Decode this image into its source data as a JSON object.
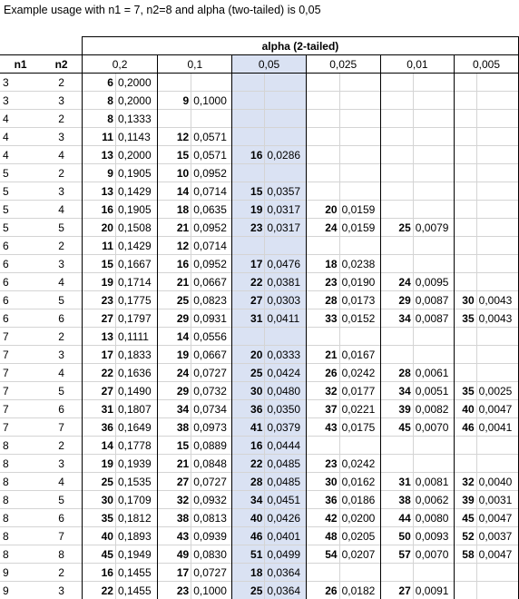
{
  "caption": "Example usage with n1 = 7, n2=8 and alpha (two-tailed) is 0,05",
  "table": {
    "super_header": "alpha (2-tailed)",
    "headers": [
      "n1",
      "n2"
    ],
    "alphas": [
      "0,2",
      "0,1",
      "0,05",
      "0,025",
      "0,01",
      "0,005"
    ],
    "highlight_alpha_index": 2,
    "highlight_row_index": 29,
    "rows": [
      {
        "n1": "3",
        "n2": "2",
        "cells": [
          [
            "6",
            "0,2000"
          ],
          [
            "",
            ""
          ],
          [
            "",
            ""
          ],
          [
            "",
            ""
          ],
          [
            "",
            ""
          ],
          [
            "",
            ""
          ]
        ]
      },
      {
        "n1": "3",
        "n2": "3",
        "cells": [
          [
            "8",
            "0,2000"
          ],
          [
            "9",
            "0,1000"
          ],
          [
            "",
            ""
          ],
          [
            "",
            ""
          ],
          [
            "",
            ""
          ],
          [
            "",
            ""
          ]
        ]
      },
      {
        "n1": "4",
        "n2": "2",
        "cells": [
          [
            "8",
            "0,1333"
          ],
          [
            "",
            ""
          ],
          [
            "",
            ""
          ],
          [
            "",
            ""
          ],
          [
            "",
            ""
          ],
          [
            "",
            ""
          ]
        ]
      },
      {
        "n1": "4",
        "n2": "3",
        "cells": [
          [
            "11",
            "0,1143"
          ],
          [
            "12",
            "0,0571"
          ],
          [
            "",
            ""
          ],
          [
            "",
            ""
          ],
          [
            "",
            ""
          ],
          [
            "",
            ""
          ]
        ]
      },
      {
        "n1": "4",
        "n2": "4",
        "cells": [
          [
            "13",
            "0,2000"
          ],
          [
            "15",
            "0,0571"
          ],
          [
            "16",
            "0,0286"
          ],
          [
            "",
            ""
          ],
          [
            "",
            ""
          ],
          [
            "",
            ""
          ]
        ]
      },
      {
        "n1": "5",
        "n2": "2",
        "cells": [
          [
            "9",
            "0,1905"
          ],
          [
            "10",
            "0,0952"
          ],
          [
            "",
            ""
          ],
          [
            "",
            ""
          ],
          [
            "",
            ""
          ],
          [
            "",
            ""
          ]
        ]
      },
      {
        "n1": "5",
        "n2": "3",
        "cells": [
          [
            "13",
            "0,1429"
          ],
          [
            "14",
            "0,0714"
          ],
          [
            "15",
            "0,0357"
          ],
          [
            "",
            ""
          ],
          [
            "",
            ""
          ],
          [
            "",
            ""
          ]
        ]
      },
      {
        "n1": "5",
        "n2": "4",
        "cells": [
          [
            "16",
            "0,1905"
          ],
          [
            "18",
            "0,0635"
          ],
          [
            "19",
            "0,0317"
          ],
          [
            "20",
            "0,0159"
          ],
          [
            "",
            ""
          ],
          [
            "",
            ""
          ]
        ]
      },
      {
        "n1": "5",
        "n2": "5",
        "cells": [
          [
            "20",
            "0,1508"
          ],
          [
            "21",
            "0,0952"
          ],
          [
            "23",
            "0,0317"
          ],
          [
            "24",
            "0,0159"
          ],
          [
            "25",
            "0,0079"
          ],
          [
            "",
            ""
          ]
        ]
      },
      {
        "n1": "6",
        "n2": "2",
        "cells": [
          [
            "11",
            "0,1429"
          ],
          [
            "12",
            "0,0714"
          ],
          [
            "",
            ""
          ],
          [
            "",
            ""
          ],
          [
            "",
            ""
          ],
          [
            "",
            ""
          ]
        ]
      },
      {
        "n1": "6",
        "n2": "3",
        "cells": [
          [
            "15",
            "0,1667"
          ],
          [
            "16",
            "0,0952"
          ],
          [
            "17",
            "0,0476"
          ],
          [
            "18",
            "0,0238"
          ],
          [
            "",
            ""
          ],
          [
            "",
            ""
          ]
        ]
      },
      {
        "n1": "6",
        "n2": "4",
        "cells": [
          [
            "19",
            "0,1714"
          ],
          [
            "21",
            "0,0667"
          ],
          [
            "22",
            "0,0381"
          ],
          [
            "23",
            "0,0190"
          ],
          [
            "24",
            "0,0095"
          ],
          [
            "",
            ""
          ]
        ]
      },
      {
        "n1": "6",
        "n2": "5",
        "cells": [
          [
            "23",
            "0,1775"
          ],
          [
            "25",
            "0,0823"
          ],
          [
            "27",
            "0,0303"
          ],
          [
            "28",
            "0,0173"
          ],
          [
            "29",
            "0,0087"
          ],
          [
            "30",
            "0,0043"
          ]
        ]
      },
      {
        "n1": "6",
        "n2": "6",
        "cells": [
          [
            "27",
            "0,1797"
          ],
          [
            "29",
            "0,0931"
          ],
          [
            "31",
            "0,0411"
          ],
          [
            "33",
            "0,0152"
          ],
          [
            "34",
            "0,0087"
          ],
          [
            "35",
            "0,0043"
          ]
        ]
      },
      {
        "n1": "7",
        "n2": "2",
        "cells": [
          [
            "13",
            "0,1111"
          ],
          [
            "14",
            "0,0556"
          ],
          [
            "",
            ""
          ],
          [
            "",
            ""
          ],
          [
            "",
            ""
          ],
          [
            "",
            ""
          ]
        ]
      },
      {
        "n1": "7",
        "n2": "3",
        "cells": [
          [
            "17",
            "0,1833"
          ],
          [
            "19",
            "0,0667"
          ],
          [
            "20",
            "0,0333"
          ],
          [
            "21",
            "0,0167"
          ],
          [
            "",
            ""
          ],
          [
            "",
            ""
          ]
        ]
      },
      {
        "n1": "7",
        "n2": "4",
        "cells": [
          [
            "22",
            "0,1636"
          ],
          [
            "24",
            "0,0727"
          ],
          [
            "25",
            "0,0424"
          ],
          [
            "26",
            "0,0242"
          ],
          [
            "28",
            "0,0061"
          ],
          [
            "",
            ""
          ]
        ]
      },
      {
        "n1": "7",
        "n2": "5",
        "cells": [
          [
            "27",
            "0,1490"
          ],
          [
            "29",
            "0,0732"
          ],
          [
            "30",
            "0,0480"
          ],
          [
            "32",
            "0,0177"
          ],
          [
            "34",
            "0,0051"
          ],
          [
            "35",
            "0,0025"
          ]
        ]
      },
      {
        "n1": "7",
        "n2": "6",
        "cells": [
          [
            "31",
            "0,1807"
          ],
          [
            "34",
            "0,0734"
          ],
          [
            "36",
            "0,0350"
          ],
          [
            "37",
            "0,0221"
          ],
          [
            "39",
            "0,0082"
          ],
          [
            "40",
            "0,0047"
          ]
        ]
      },
      {
        "n1": "7",
        "n2": "7",
        "cells": [
          [
            "36",
            "0,1649"
          ],
          [
            "38",
            "0,0973"
          ],
          [
            "41",
            "0,0379"
          ],
          [
            "43",
            "0,0175"
          ],
          [
            "45",
            "0,0070"
          ],
          [
            "46",
            "0,0041"
          ]
        ]
      },
      {
        "n1": "8",
        "n2": "2",
        "cells": [
          [
            "14",
            "0,1778"
          ],
          [
            "15",
            "0,0889"
          ],
          [
            "16",
            "0,0444"
          ],
          [
            "",
            ""
          ],
          [
            "",
            ""
          ],
          [
            "",
            ""
          ]
        ]
      },
      {
        "n1": "8",
        "n2": "3",
        "cells": [
          [
            "19",
            "0,1939"
          ],
          [
            "21",
            "0,0848"
          ],
          [
            "22",
            "0,0485"
          ],
          [
            "23",
            "0,0242"
          ],
          [
            "",
            ""
          ],
          [
            "",
            ""
          ]
        ]
      },
      {
        "n1": "8",
        "n2": "4",
        "cells": [
          [
            "25",
            "0,1535"
          ],
          [
            "27",
            "0,0727"
          ],
          [
            "28",
            "0,0485"
          ],
          [
            "30",
            "0,0162"
          ],
          [
            "31",
            "0,0081"
          ],
          [
            "32",
            "0,0040"
          ]
        ]
      },
      {
        "n1": "8",
        "n2": "5",
        "cells": [
          [
            "30",
            "0,1709"
          ],
          [
            "32",
            "0,0932"
          ],
          [
            "34",
            "0,0451"
          ],
          [
            "36",
            "0,0186"
          ],
          [
            "38",
            "0,0062"
          ],
          [
            "39",
            "0,0031"
          ]
        ]
      },
      {
        "n1": "8",
        "n2": "6",
        "cells": [
          [
            "35",
            "0,1812"
          ],
          [
            "38",
            "0,0813"
          ],
          [
            "40",
            "0,0426"
          ],
          [
            "42",
            "0,0200"
          ],
          [
            "44",
            "0,0080"
          ],
          [
            "45",
            "0,0047"
          ]
        ]
      },
      {
        "n1": "8",
        "n2": "7",
        "cells": [
          [
            "40",
            "0,1893"
          ],
          [
            "43",
            "0,0939"
          ],
          [
            "46",
            "0,0401"
          ],
          [
            "48",
            "0,0205"
          ],
          [
            "50",
            "0,0093"
          ],
          [
            "52",
            "0,0037"
          ]
        ]
      },
      {
        "n1": "8",
        "n2": "8",
        "cells": [
          [
            "45",
            "0,1949"
          ],
          [
            "49",
            "0,0830"
          ],
          [
            "51",
            "0,0499"
          ],
          [
            "54",
            "0,0207"
          ],
          [
            "57",
            "0,0070"
          ],
          [
            "58",
            "0,0047"
          ]
        ]
      },
      {
        "n1": "9",
        "n2": "2",
        "cells": [
          [
            "16",
            "0,1455"
          ],
          [
            "17",
            "0,0727"
          ],
          [
            "18",
            "0,0364"
          ],
          [
            "",
            ""
          ],
          [
            "",
            ""
          ],
          [
            "",
            ""
          ]
        ]
      },
      {
        "n1": "9",
        "n2": "3",
        "cells": [
          [
            "22",
            "0,1455"
          ],
          [
            "23",
            "0,1000"
          ],
          [
            "25",
            "0,0364"
          ],
          [
            "26",
            "0,0182"
          ],
          [
            "27",
            "0,0091"
          ],
          [
            "",
            ""
          ]
        ]
      }
    ],
    "colors": {
      "column_shade": "#dae2f3",
      "cell_highlight": "#ffff00"
    }
  }
}
